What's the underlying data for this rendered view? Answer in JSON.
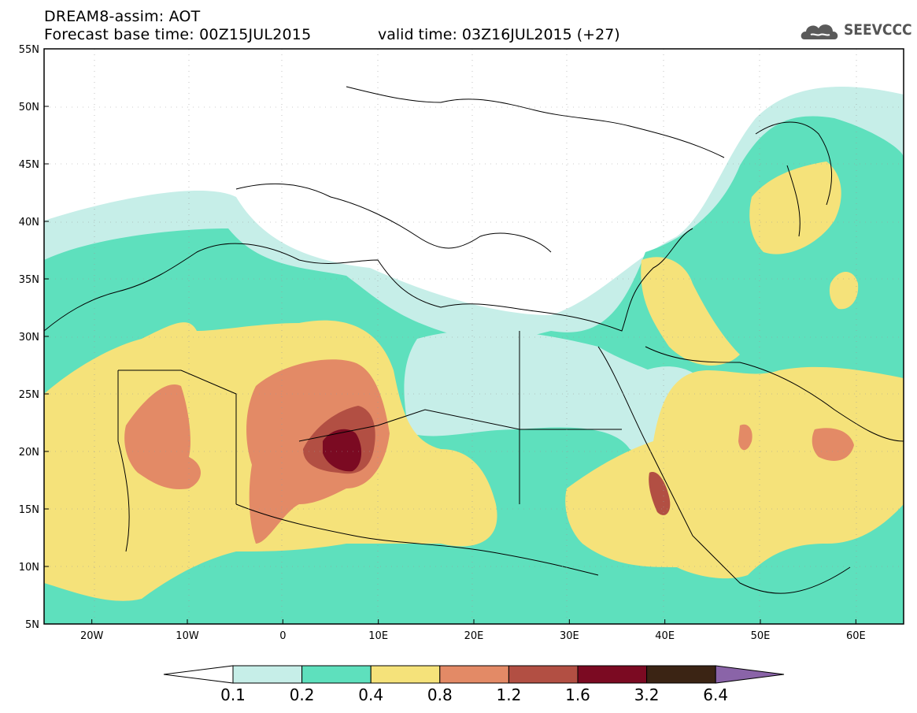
{
  "header": {
    "title": "DREAM8-assim: AOT",
    "base_time": "Forecast base time: 00Z15JUL2015",
    "valid_time": "valid time: 03Z16JUL2015 (+27)",
    "logo_text": "SEEVCCC"
  },
  "axes": {
    "lat_labels": [
      "55N",
      "50N",
      "45N",
      "40N",
      "35N",
      "30N",
      "25N",
      "20N",
      "15N",
      "10N",
      "5N"
    ],
    "lon_labels": [
      "20W",
      "10W",
      "0",
      "10E",
      "20E",
      "30E",
      "40E",
      "50E",
      "60E"
    ],
    "lat_range": [
      5,
      55
    ],
    "lon_range": [
      -25,
      65
    ]
  },
  "colorbar": {
    "labels": [
      "0.1",
      "0.2",
      "0.4",
      "0.8",
      "1.2",
      "1.6",
      "3.2",
      "6.4"
    ],
    "colors": [
      "#ffffff",
      "#c6eee8",
      "#5ee0bd",
      "#f5e27a",
      "#e38a66",
      "#b24f43",
      "#7b0a22",
      "#3b2414",
      "#8a64a8"
    ]
  },
  "field": {
    "variable": "AOT",
    "colors": {
      "c01": "#c6eee8",
      "c02": "#5ee0bd",
      "c04": "#f5e27a",
      "c08": "#e38a66",
      "c12": "#b24f43",
      "c16": "#7b0a22"
    }
  }
}
